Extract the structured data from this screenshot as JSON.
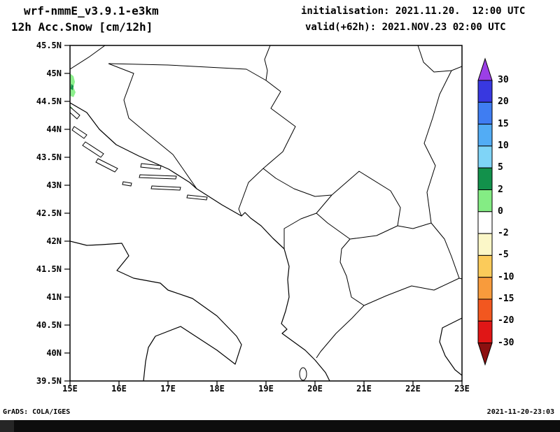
{
  "header": {
    "model_title": "wrf-nmmE_v3.9.1-e3km",
    "product_title": "12h Acc.Snow [cm/12h]",
    "init_text": "initialisation: 2021.11.20.  12:00 UTC",
    "valid_text": "valid(+62h): 2021.NOV.23 02:00 UTC"
  },
  "map": {
    "lat_ticks": [
      "45.5N",
      "45N",
      "44.5N",
      "44N",
      "43.5N",
      "43N",
      "42.5N",
      "42N",
      "41.5N",
      "41N",
      "40.5N",
      "40N",
      "39.5N"
    ],
    "lon_ticks": [
      "15E",
      "16E",
      "17E",
      "18E",
      "19E",
      "20E",
      "21E",
      "22E",
      "23E"
    ],
    "snow_patch": {
      "light": "#8df08d",
      "dark": "#12914b"
    }
  },
  "colorbar": {
    "labels": [
      "30",
      "20",
      "15",
      "10",
      "5",
      "2",
      "0",
      "-2",
      "-5",
      "-10",
      "-15",
      "-20",
      "-30"
    ],
    "segment_colors": [
      "#3838e0",
      "#3f7df2",
      "#52acf5",
      "#7fd4f7",
      "#12914b",
      "#84ec84",
      "#ffffff",
      "#fbf7c8",
      "#fbcb5a",
      "#f89b3c",
      "#f2571f",
      "#e01616"
    ],
    "arrow_top_color": "#9b3fe6",
    "arrow_bottom_color": "#8c1010"
  },
  "footer": {
    "credit": "GrADS: COLA/IGES",
    "timestamp": "2021-11-20-23:03"
  }
}
